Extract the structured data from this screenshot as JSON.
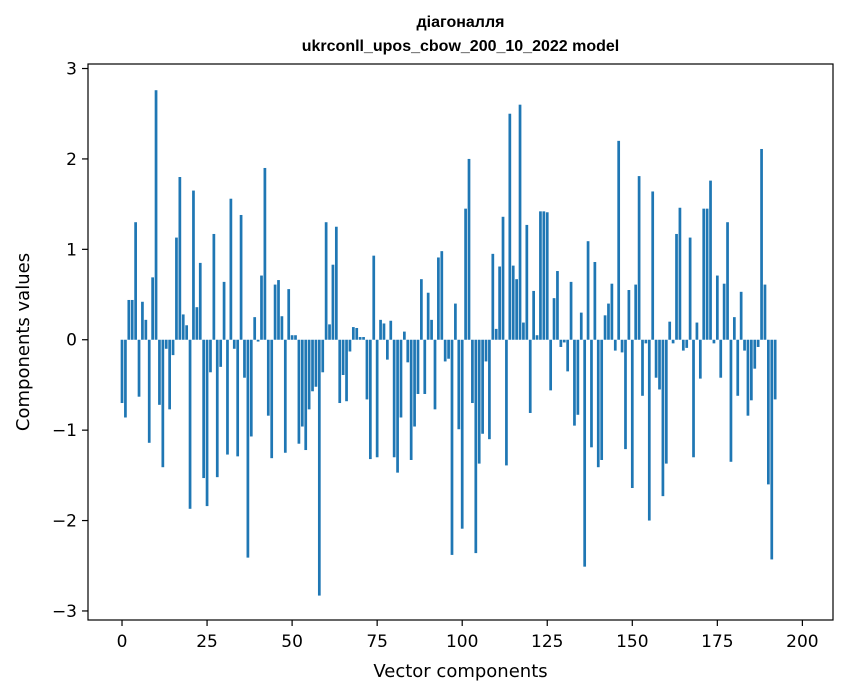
{
  "chart_data": {
    "type": "bar",
    "title": "діагоналля",
    "subtitle": "ukrconll_upos_cbow_200_10_2022 model",
    "xlabel": "Vector components",
    "ylabel": "Components values",
    "xlim": [
      -10,
      209
    ],
    "ylim": [
      -3.1,
      3.05
    ],
    "xticks": [
      0,
      25,
      50,
      75,
      100,
      125,
      150,
      175,
      200
    ],
    "xtick_labels": [
      "0",
      "25",
      "50",
      "75",
      "100",
      "125",
      "150",
      "175",
      "200"
    ],
    "yticks": [
      -3,
      -2,
      -1,
      0,
      1,
      2,
      3
    ],
    "ytick_labels": [
      "−3",
      "−2",
      "−1",
      "0",
      "1",
      "2",
      "3"
    ],
    "grid": false,
    "bar_color": "#1f77b4",
    "values": [
      -0.7,
      -0.86,
      0.44,
      0.44,
      1.3,
      -0.63,
      0.42,
      0.22,
      -1.14,
      0.69,
      2.76,
      -0.72,
      -1.41,
      -0.1,
      -0.77,
      -0.17,
      1.13,
      1.8,
      0.28,
      0.16,
      -1.87,
      1.65,
      0.36,
      0.85,
      -1.53,
      -1.84,
      -0.36,
      1.17,
      -1.52,
      -0.3,
      0.64,
      -1.27,
      1.56,
      -0.1,
      -1.29,
      1.38,
      -0.42,
      -2.41,
      -1.07,
      0.25,
      -0.02,
      0.71,
      1.9,
      -0.84,
      -1.31,
      0.61,
      0.66,
      0.26,
      -1.25,
      0.56,
      0.05,
      0.05,
      -1.15,
      -0.96,
      -1.22,
      -0.77,
      -0.57,
      -0.52,
      -2.83,
      -0.36,
      1.3,
      0.17,
      0.83,
      1.25,
      -0.7,
      -0.39,
      -0.68,
      -0.13,
      0.14,
      0.13,
      0.03,
      0.03,
      -0.66,
      -1.32,
      0.93,
      -1.3,
      0.22,
      0.18,
      -0.22,
      0.21,
      -1.3,
      -1.47,
      -0.86,
      0.09,
      -0.25,
      -1.33,
      -0.96,
      -0.6,
      0.67,
      -0.6,
      0.52,
      0.22,
      -0.77,
      0.91,
      0.98,
      -0.24,
      -0.21,
      -2.38,
      0.4,
      -0.99,
      -2.09,
      1.45,
      2.0,
      -0.7,
      -2.36,
      -1.37,
      -1.04,
      -0.24,
      -1.1,
      0.95,
      0.12,
      0.81,
      1.36,
      -1.39,
      2.5,
      0.82,
      0.67,
      2.6,
      0.19,
      1.27,
      -0.81,
      0.54,
      0.05,
      1.42,
      1.42,
      1.41,
      -0.56,
      0.46,
      0.76,
      -0.08,
      -0.03,
      -0.35,
      0.64,
      -0.95,
      -0.83,
      0.3,
      -2.51,
      1.09,
      -1.19,
      0.86,
      -1.41,
      -1.33,
      0.27,
      0.4,
      0.62,
      -0.12,
      2.2,
      -0.14,
      -1.21,
      0.55,
      -1.64,
      0.61,
      1.81,
      -0.62,
      -0.04,
      -2.0,
      1.64,
      -0.42,
      -0.55,
      -1.73,
      -1.37,
      0.2,
      -0.04,
      1.17,
      1.46,
      -0.12,
      -0.09,
      1.13,
      -1.3,
      0.19,
      -0.43,
      1.45,
      1.45,
      1.76,
      -0.04,
      0.71,
      -0.42,
      0.62,
      1.3,
      -1.35,
      0.25,
      -0.62,
      0.53,
      -0.12,
      -0.84,
      -0.67,
      -0.32,
      -0.08,
      2.11,
      0.61,
      -1.6,
      -2.43,
      -0.66
    ]
  }
}
